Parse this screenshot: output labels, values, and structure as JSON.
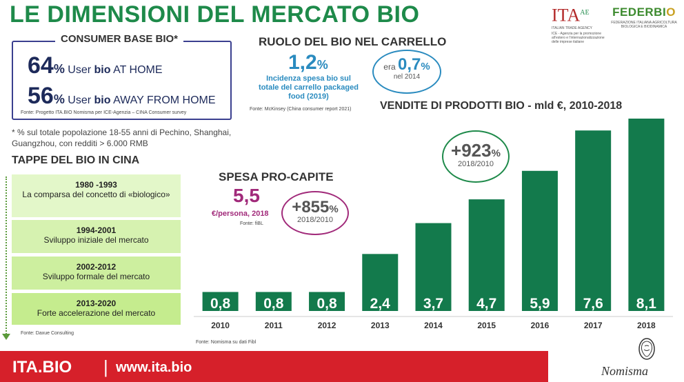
{
  "title": "LE DIMENSIONI DEL MERCATO BIO",
  "logos": {
    "ita": "ITA",
    "ita_sup": "AE",
    "ita_sub1": "ITALIAN TRADE AGENCY",
    "ita_sub2": "ICE - Agenzia per la promozione all'estero e l'internazionalizzazione delle imprese italiane",
    "federbio_a": "FEDERB",
    "federbio_o": "I",
    "federbio_b": "O",
    "federbio_sub": "FEDERAZIONE ITALIANA AGRICOLTURA BIOLOGICA E BIODINAMICA"
  },
  "consumer_base": {
    "title": "CONSUMER BASE BIO*",
    "row1": {
      "num": "64",
      "pct": "%",
      "pre": "User ",
      "bold": "bio",
      "post": " AT HOME"
    },
    "row2": {
      "num": "56",
      "pct": "%",
      "pre": "User ",
      "bold": "bio",
      "post": " AWAY FROM HOME"
    },
    "source": "Fonte: Progetto ITA.BIO Nomisma per ICE-Agenzia – CINA Consumer survey",
    "note": "* % sul totale popolazione 18-55 anni di Pechino, Shanghai, Guangzhou, con redditi > 6.000 RMB"
  },
  "ruolo": {
    "title": "RUOLO DEL BIO NEL CARRELLO",
    "value": "1,2",
    "pct": "%",
    "desc": "Incidenza spesa bio sul totale del carrello packaged food (2019)",
    "source": "Fonte: McKinsey (China consumer report 2021)",
    "oval_pre": "era ",
    "oval_value": "0,7",
    "oval_pct": "%",
    "oval_year": "nel 2014"
  },
  "tappe": {
    "title": "TAPPE DEL BIO IN CINA",
    "items": [
      {
        "years": "1980 -1993",
        "desc": "La comparsa del concetto di «biologico»"
      },
      {
        "years": "1994-2001",
        "desc": "Sviluppo iniziale del mercato"
      },
      {
        "years": "2002-2012",
        "desc": "Sviluppo formale del mercato"
      },
      {
        "years": "2013-2020",
        "desc": "Forte accelerazione del mercato"
      }
    ],
    "source": "Fonte: Daxue Consulting"
  },
  "spesa": {
    "title": "SPESA PRO-CAPITE",
    "value": "5,5",
    "unit": "€/persona, 2018",
    "source": "Fonte: fiBL",
    "oval_value": "+855",
    "oval_pct": "%",
    "oval_period": "2018/2010"
  },
  "growth": {
    "value": "+923",
    "pct": "%",
    "period": "2018/2010"
  },
  "chart_source": "Fonte: Nomisma su dati Fibl",
  "chart_data": {
    "type": "bar",
    "title": "VENDITE DI PRODOTTI BIO - mld €, 2010-2018",
    "xlabel": "",
    "ylabel": "",
    "categories": [
      "2010",
      "2011",
      "2012",
      "2013",
      "2014",
      "2015",
      "2016",
      "2017",
      "2018"
    ],
    "values": [
      0.8,
      0.8,
      0.8,
      2.4,
      3.7,
      4.7,
      5.9,
      7.6,
      8.1
    ],
    "labels": [
      "0,8",
      "0,8",
      "0,8",
      "2,4",
      "3,7",
      "4,7",
      "5,9",
      "7,6",
      "8,1"
    ],
    "ylim": [
      0,
      8.1
    ],
    "grid": false,
    "bar_color": "#137a4c"
  },
  "footer": {
    "brand": "ITA.BIO",
    "separator": "|",
    "url": "www.ita.bio",
    "company": "Nomisma"
  }
}
